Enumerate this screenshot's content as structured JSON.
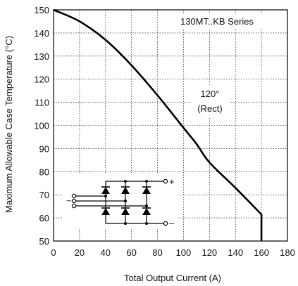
{
  "chart_data": {
    "type": "line",
    "title": "",
    "xlabel": "Total Output Current (A)",
    "ylabel": "Maximum Allowable Case Temperature (°C)",
    "xlim": [
      0,
      180
    ],
    "ylim": [
      50,
      150
    ],
    "x_ticks": [
      "0",
      "20",
      "40",
      "60",
      "80",
      "100",
      "120",
      "140",
      "160",
      "180"
    ],
    "y_ticks": [
      "50",
      "60",
      "70",
      "80",
      "90",
      "100",
      "110",
      "120",
      "130",
      "140",
      "150"
    ],
    "grid": true,
    "series": [
      {
        "name": "",
        "x": [
          0,
          20,
          40,
          60,
          80,
          100,
          110,
          120,
          140,
          160,
          160
        ],
        "y": [
          150,
          145,
          137,
          126,
          113,
          99,
          92,
          84,
          73,
          61.5,
          50
        ]
      }
    ],
    "annotations": {
      "series_label": "130MT..KB Series",
      "curve_label_line1": "120°",
      "curve_label_line2": "(Rect)"
    },
    "circuit_symbols": {
      "plus": "+",
      "minus": "–",
      "ac": "~"
    }
  }
}
